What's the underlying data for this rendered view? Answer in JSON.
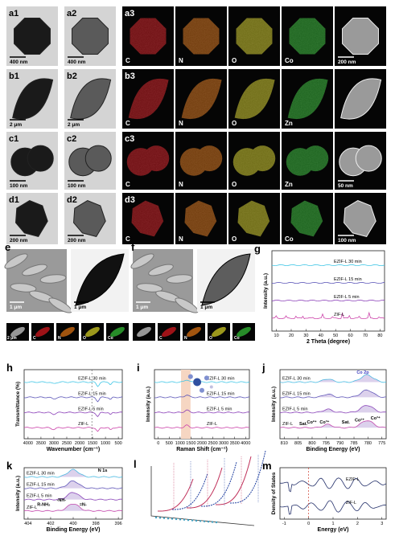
{
  "tem": [
    {
      "labels": [
        "a1",
        "a2",
        "a3"
      ],
      "scale_bars": [
        "400 nm",
        "400 nm",
        "200 nm"
      ],
      "elements": [
        "C",
        "N",
        "O",
        "Co"
      ]
    },
    {
      "labels": [
        "b1",
        "b2",
        "b3"
      ],
      "scale_bars": [
        "2 μm",
        "2 μm"
      ],
      "elements": [
        "C",
        "N",
        "O",
        "Zn"
      ]
    },
    {
      "labels": [
        "c1",
        "c2",
        "c3"
      ],
      "scale_bars": [
        "100 nm",
        "100 nm",
        "50 nm"
      ],
      "elements": [
        "C",
        "N",
        "O",
        "Zn"
      ]
    },
    {
      "labels": [
        "d1",
        "d2",
        "d3"
      ],
      "scale_bars": [
        "200 nm",
        "200 nm",
        "100 nm"
      ],
      "elements": [
        "C",
        "N",
        "O",
        "Co"
      ]
    }
  ],
  "sem": [
    {
      "label": "e",
      "scale_bars": [
        "1 μm",
        "1 μm",
        "2 μm"
      ],
      "elements": [
        "C",
        "N",
        "O",
        "Co"
      ]
    },
    {
      "label": "f",
      "scale_bars": [
        "1 μm",
        "1 μm"
      ],
      "elements": [
        "C",
        "N",
        "O",
        "Co"
      ]
    }
  ],
  "plots": [
    {
      "label": "g",
      "xlabel": "2 Theta (degree)",
      "ylabel": "Intensity (a.u.)",
      "xticks": [
        10,
        20,
        30,
        40,
        50,
        60,
        70,
        80
      ],
      "series": [
        "EZIF-L 30 min",
        "EZIF-L 15 min",
        "EZIF-L 5 min",
        "ZIF-L"
      ],
      "annotations": []
    },
    {
      "label": "h",
      "xlabel": "Wavenumber (cm⁻¹)",
      "ylabel": "Transmittance (%)",
      "xticks": [
        4000,
        3500,
        3000,
        2500,
        2000,
        1500,
        1000,
        500
      ],
      "series": [
        "EZIF-L 30 min",
        "EZIF-L 15 min",
        "EZIF-L 5 min",
        "ZIF-L"
      ],
      "annotations": []
    },
    {
      "label": "i",
      "xlabel": "Raman Shift (cm⁻¹)",
      "ylabel": "Intensity (a.u.)",
      "xticks": [
        0,
        500,
        1000,
        1500,
        2000,
        2500,
        3000,
        3500,
        4000
      ],
      "series": [
        "EZIF-L 30 min",
        "EZIF-L 15 min",
        "EZIF-L 5 min",
        "ZIF-L"
      ],
      "annotations": []
    },
    {
      "label": "j",
      "xlabel": "Binding Energy (eV)",
      "ylabel": "Intensity (a.u.)",
      "xticks": [
        810,
        805,
        800,
        795,
        790,
        785,
        780,
        775
      ],
      "series": [
        "EZIF-L 30 min",
        "EZIF-L 15 min",
        "EZIF-L 5 min",
        "ZIF-L"
      ],
      "annotations": [
        "Co 2p",
        "Sat.",
        "Co²⁺",
        "Co³⁺",
        "Sat.",
        "Co²⁺",
        "Co³⁺"
      ]
    },
    {
      "label": "k",
      "xlabel": "Binding Energy (eV)",
      "ylabel": "Intensity (a.u.)",
      "xticks": [
        404,
        402,
        400,
        398,
        396
      ],
      "series": [
        "EZIF-L 30 min",
        "EZIF-L 15 min",
        "EZIF-L 5 min",
        "ZIF-L"
      ],
      "annotations": [
        "N 1s",
        "R-NH₂",
        "-NH-",
        "=N-"
      ]
    },
    {
      "label": "l",
      "xlabel": "",
      "ylabel": "",
      "xticks": [],
      "series": [],
      "annotations": []
    },
    {
      "label": "m",
      "xlabel": "Energy (eV)",
      "ylabel": "Density of States",
      "xticks": [
        -1,
        0,
        1,
        2,
        3
      ],
      "series": [
        "EZIF-L",
        "ZIF-L"
      ],
      "annotations": []
    }
  ]
}
